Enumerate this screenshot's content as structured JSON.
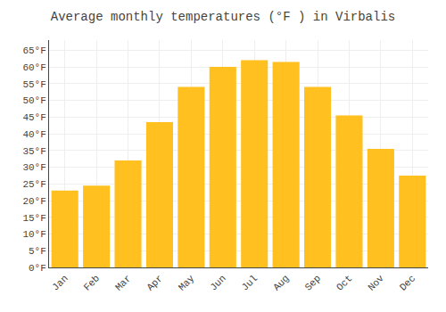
{
  "chart_data": {
    "type": "bar",
    "title": "Average monthly temperatures (°F ) in Virbalis",
    "categories": [
      "Jan",
      "Feb",
      "Mar",
      "Apr",
      "May",
      "Jun",
      "Jul",
      "Aug",
      "Sep",
      "Oct",
      "Nov",
      "Dec"
    ],
    "values": [
      23,
      24.5,
      32,
      43.5,
      54,
      60,
      62,
      61.5,
      54,
      45.5,
      35.5,
      27.5
    ],
    "color": "#FFC020",
    "ylim": [
      0,
      68
    ],
    "yticks": [
      {
        "value": 0,
        "label": "0°F"
      },
      {
        "value": 5,
        "label": "5°F"
      },
      {
        "value": 10,
        "label": "10°F"
      },
      {
        "value": 15,
        "label": "15°F"
      },
      {
        "value": 20,
        "label": "20°F"
      },
      {
        "value": 25,
        "label": "25°F"
      },
      {
        "value": 30,
        "label": "30°F"
      },
      {
        "value": 35,
        "label": "35°F"
      },
      {
        "value": 40,
        "label": "40°F"
      },
      {
        "value": 45,
        "label": "45°F"
      },
      {
        "value": 50,
        "label": "50°F"
      },
      {
        "value": 55,
        "label": "55°F"
      },
      {
        "value": 60,
        "label": "60°F"
      },
      {
        "value": 65,
        "label": "65°F"
      }
    ],
    "grid": true
  }
}
